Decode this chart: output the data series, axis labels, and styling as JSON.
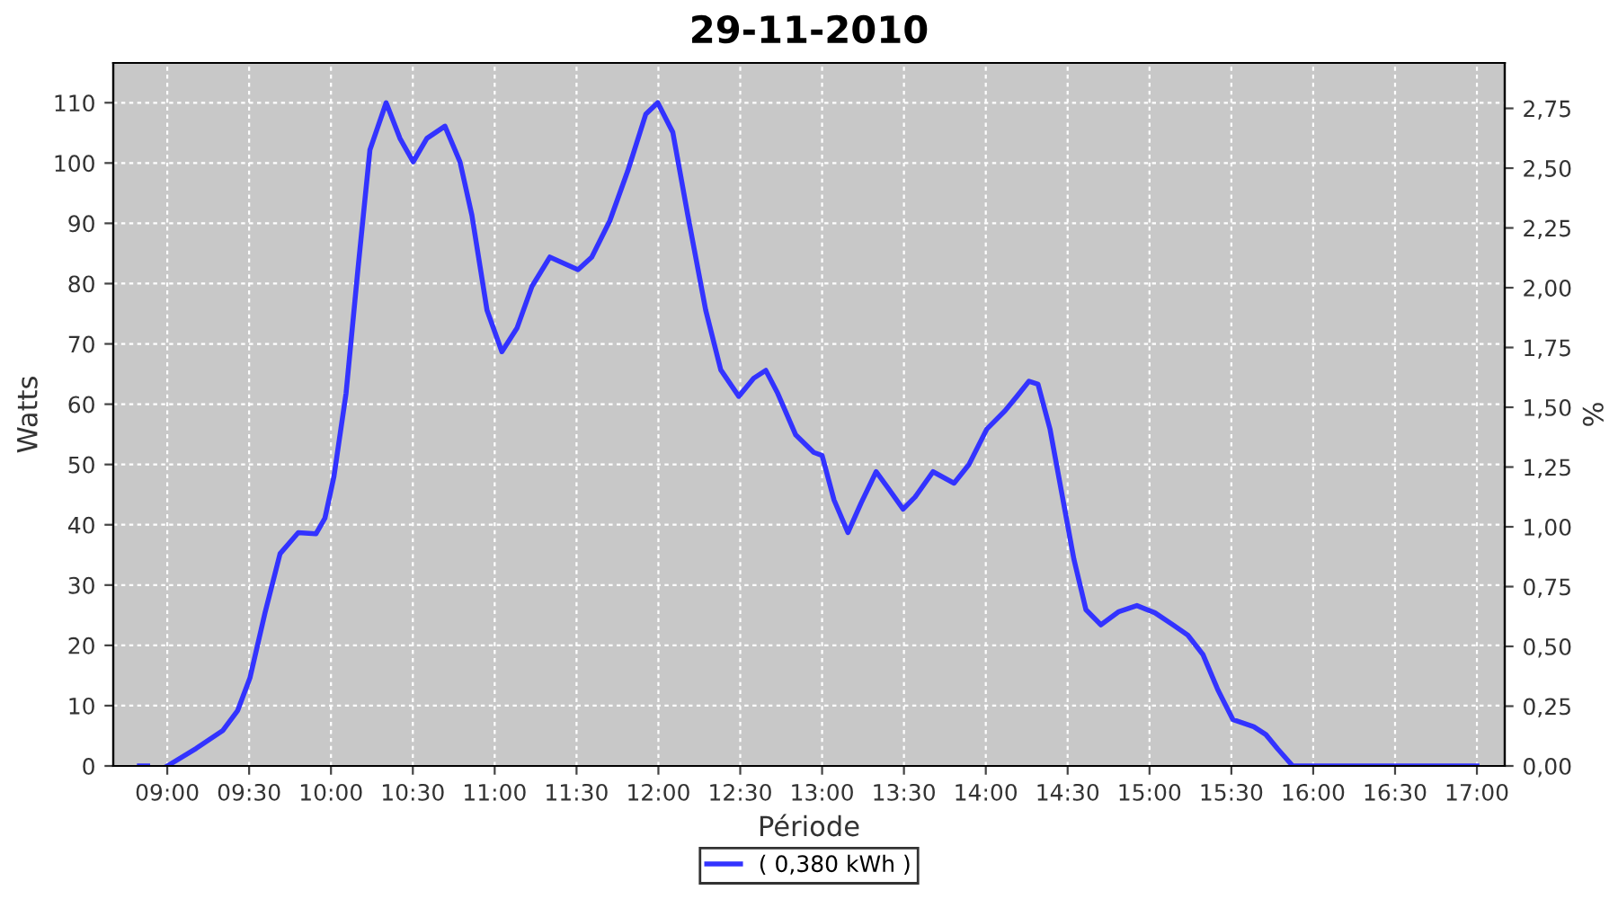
{
  "chart_data": {
    "type": "line",
    "title": "29-11-2010",
    "xlabel": "Période",
    "ylabel": "Watts",
    "y2label": "%",
    "series": [
      {
        "name": "( 0,380 kWh )",
        "color": "#3333ff",
        "x": [
          8.83,
          8.88,
          8.94,
          9.0,
          9.176,
          9.34,
          9.43,
          9.505,
          9.597,
          9.689,
          9.8,
          9.908,
          9.963,
          10.018,
          10.092,
          10.165,
          10.238,
          10.337,
          10.421,
          10.502,
          10.586,
          10.696,
          10.788,
          10.861,
          10.953,
          11.044,
          11.136,
          11.227,
          11.337,
          11.509,
          11.593,
          11.703,
          11.813,
          11.923,
          11.996,
          12.088,
          12.18,
          12.289,
          12.381,
          12.491,
          12.582,
          12.656,
          12.729,
          12.839,
          12.949,
          13.0,
          13.073,
          13.158,
          13.238,
          13.33,
          13.403,
          13.495,
          13.568,
          13.678,
          13.806,
          13.897,
          14.007,
          14.117,
          14.19,
          14.264,
          14.319,
          14.392,
          14.465,
          14.538,
          14.612,
          14.703,
          14.813,
          14.923,
          15.033,
          15.143,
          15.234,
          15.326,
          15.418,
          15.509,
          15.637,
          15.711,
          15.784,
          15.875,
          17.0
        ],
        "values": [
          0,
          0,
          null,
          0,
          2.9,
          5.9,
          9.2,
          14.6,
          25.4,
          35.2,
          38.7,
          38.5,
          41.1,
          48.0,
          61.8,
          82.5,
          102.2,
          110.0,
          104.1,
          100.2,
          104.1,
          106.1,
          100.2,
          91.3,
          75.6,
          68.7,
          72.6,
          79.5,
          84.4,
          82.3,
          84.4,
          90.4,
          98.7,
          108.1,
          110.0,
          105.1,
          91.3,
          75.6,
          65.7,
          61.3,
          64.3,
          65.6,
          61.8,
          54.9,
          52.0,
          51.5,
          44.1,
          38.7,
          43.6,
          48.8,
          46.1,
          42.6,
          44.6,
          48.8,
          46.9,
          50.0,
          55.9,
          58.9,
          61.3,
          63.8,
          63.3,
          55.9,
          45.1,
          34.3,
          25.9,
          23.4,
          25.6,
          26.6,
          25.4,
          23.4,
          21.7,
          18.5,
          12.6,
          7.7,
          6.5,
          5.2,
          2.8,
          0,
          0
        ]
      }
    ],
    "xlim": [
      8.67,
      17.17
    ],
    "xticks": [
      {
        "value": 9,
        "label": "09:00"
      },
      {
        "value": 9.5,
        "label": "09:30"
      },
      {
        "value": 10,
        "label": "10:00"
      },
      {
        "value": 10.5,
        "label": "10:30"
      },
      {
        "value": 11,
        "label": "11:00"
      },
      {
        "value": 11.5,
        "label": "11:30"
      },
      {
        "value": 12,
        "label": "12:00"
      },
      {
        "value": 12.5,
        "label": "12:30"
      },
      {
        "value": 13,
        "label": "13:00"
      },
      {
        "value": 13.5,
        "label": "13:30"
      },
      {
        "value": 14,
        "label": "14:00"
      },
      {
        "value": 14.5,
        "label": "14:30"
      },
      {
        "value": 15,
        "label": "15:00"
      },
      {
        "value": 15.5,
        "label": "15:30"
      },
      {
        "value": 16,
        "label": "16:00"
      },
      {
        "value": 16.5,
        "label": "16:30"
      },
      {
        "value": 17,
        "label": "17:00"
      }
    ],
    "ylim": [
      0,
      116.6
    ],
    "yticks": [
      0,
      10,
      20,
      30,
      40,
      50,
      60,
      70,
      80,
      90,
      100,
      110
    ],
    "y2lim": [
      0,
      2.94
    ],
    "y2ticks": [
      {
        "value": 0,
        "label": "0,00"
      },
      {
        "value": 0.25,
        "label": "0,25"
      },
      {
        "value": 0.5,
        "label": "0,50"
      },
      {
        "value": 0.75,
        "label": "0,75"
      },
      {
        "value": 1.0,
        "label": "1,00"
      },
      {
        "value": 1.25,
        "label": "1,25"
      },
      {
        "value": 1.5,
        "label": "1,50"
      },
      {
        "value": 1.75,
        "label": "1,75"
      },
      {
        "value": 2.0,
        "label": "2,00"
      },
      {
        "value": 2.25,
        "label": "2,25"
      },
      {
        "value": 2.5,
        "label": "2,50"
      },
      {
        "value": 2.75,
        "label": "2,75"
      }
    ],
    "grid": true,
    "legend": "bottom",
    "marker": "none",
    "line_style": "solid"
  }
}
